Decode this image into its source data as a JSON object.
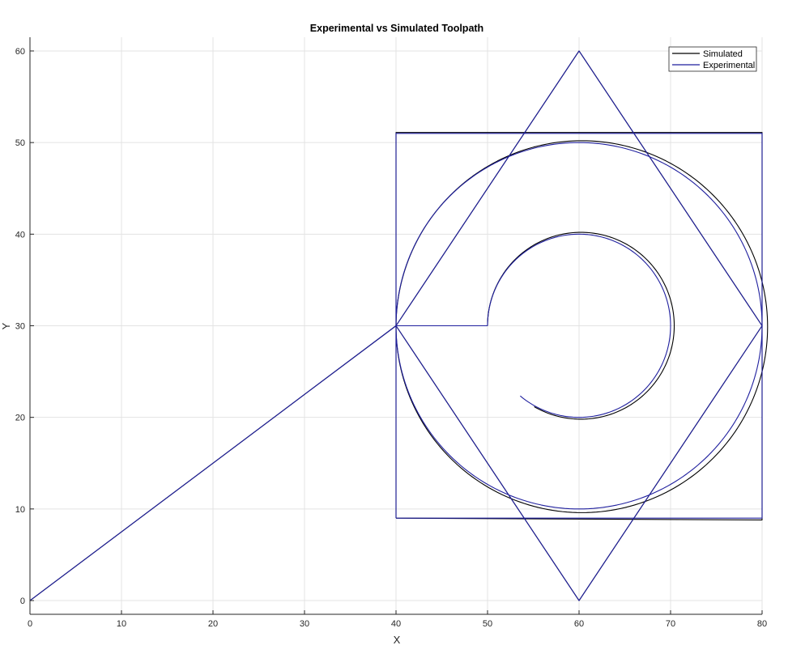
{
  "chart_data": {
    "type": "line",
    "title": "Experimental vs Simulated Toolpath",
    "xlabel": "X",
    "ylabel": "Y",
    "xlim": [
      0,
      80
    ],
    "ylim": [
      -1.5,
      61.5
    ],
    "xticks": [
      0,
      10,
      20,
      30,
      40,
      50,
      60,
      70,
      80
    ],
    "yticks": [
      0,
      10,
      20,
      30,
      40,
      50,
      60
    ],
    "grid": true,
    "legend_position": "top-right",
    "series": [
      {
        "name": "Simulated",
        "color": "#000000",
        "segments": [
          {
            "kind": "polyline",
            "points": [
              [
                0,
                0
              ],
              [
                40,
                30
              ]
            ]
          },
          {
            "kind": "polyline",
            "points": [
              [
                40,
                30
              ],
              [
                60,
                60
              ],
              [
                80,
                30
              ],
              [
                60,
                0
              ],
              [
                40,
                30
              ]
            ]
          },
          {
            "kind": "polyline",
            "points": [
              [
                40,
                9
              ],
              [
                40,
                51.1
              ],
              [
                80,
                51.1
              ],
              [
                80,
                8.8
              ],
              [
                40,
                9
              ]
            ]
          },
          {
            "kind": "polyline",
            "points": [
              [
                40,
                30
              ],
              [
                50,
                30
              ]
            ]
          },
          {
            "kind": "arc",
            "cx": 60.3,
            "cy": 29.9,
            "r": 20.3,
            "start_deg": 180,
            "sweep_deg": -360
          },
          {
            "kind": "arc",
            "cx": 60.2,
            "cy": 30.0,
            "r": 10.2,
            "start_deg": 180,
            "sweep_deg": -300
          }
        ]
      },
      {
        "name": "Experimental",
        "color": "#1f1f9e",
        "segments": [
          {
            "kind": "polyline",
            "points": [
              [
                0,
                0
              ],
              [
                40,
                30
              ]
            ]
          },
          {
            "kind": "polyline",
            "points": [
              [
                40,
                30
              ],
              [
                60,
                60
              ],
              [
                80,
                30
              ],
              [
                60,
                0
              ],
              [
                40,
                30
              ]
            ]
          },
          {
            "kind": "polyline",
            "points": [
              [
                40,
                9
              ],
              [
                40,
                51
              ],
              [
                80,
                51
              ],
              [
                80,
                9
              ],
              [
                40,
                9
              ]
            ]
          },
          {
            "kind": "polyline",
            "points": [
              [
                40,
                30
              ],
              [
                50,
                30
              ]
            ]
          },
          {
            "kind": "arc",
            "cx": 60,
            "cy": 30,
            "r": 20,
            "start_deg": 180,
            "sweep_deg": -360
          },
          {
            "kind": "arc",
            "cx": 60,
            "cy": 30,
            "r": 10,
            "start_deg": 180,
            "sweep_deg": -310
          }
        ]
      }
    ]
  }
}
